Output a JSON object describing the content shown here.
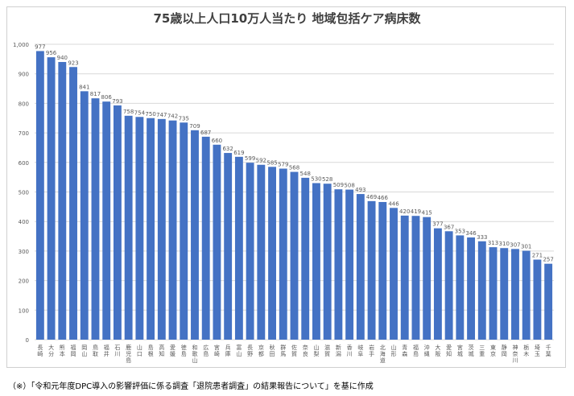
{
  "chart_data": {
    "type": "bar",
    "title": "75歳以上人口10万人当たり 地域包括ケア病床数",
    "xlabel": "",
    "ylabel": "",
    "ylim": [
      0,
      1000
    ],
    "yticks": [
      0,
      100,
      200,
      300,
      400,
      500,
      600,
      700,
      800,
      900,
      1000
    ],
    "ytick_labels": [
      "0",
      "100",
      "200",
      "300",
      "400",
      "500",
      "600",
      "700",
      "800",
      "900",
      "1,000"
    ],
    "grid": true,
    "bar_color": "#4472c4",
    "categories": [
      "長崎",
      "大分",
      "熊本",
      "福岡",
      "岡山",
      "鳥取",
      "福井",
      "石川",
      "鹿児島",
      "山口",
      "島根",
      "高知",
      "愛媛",
      "徳島",
      "和歌山",
      "広島",
      "宮崎",
      "兵庫",
      "富山",
      "長野",
      "京都",
      "秋田",
      "群馬",
      "佐賀",
      "奈良",
      "山梨",
      "滋賀",
      "新潟",
      "香川",
      "岐阜",
      "岩手",
      "北海道",
      "山形",
      "青森",
      "福島",
      "沖縄",
      "大阪",
      "愛知",
      "宮城",
      "茨城",
      "三重",
      "東京",
      "静岡",
      "神奈川",
      "栃木",
      "埼玉",
      "千葉"
    ],
    "values": [
      977,
      956,
      940,
      923,
      841,
      817,
      806,
      793,
      758,
      754,
      750,
      747,
      742,
      735,
      709,
      687,
      660,
      632,
      619,
      599,
      592,
      585,
      579,
      568,
      548,
      530,
      528,
      509,
      508,
      493,
      469,
      466,
      446,
      420,
      419,
      415,
      377,
      367,
      353,
      346,
      333,
      313,
      310,
      307,
      301,
      271,
      257
    ]
  },
  "footnote": "（※）「令和元年度DPC導入の影響評価に係る調査「退院患者調査」の結果報告について」を基に作成"
}
